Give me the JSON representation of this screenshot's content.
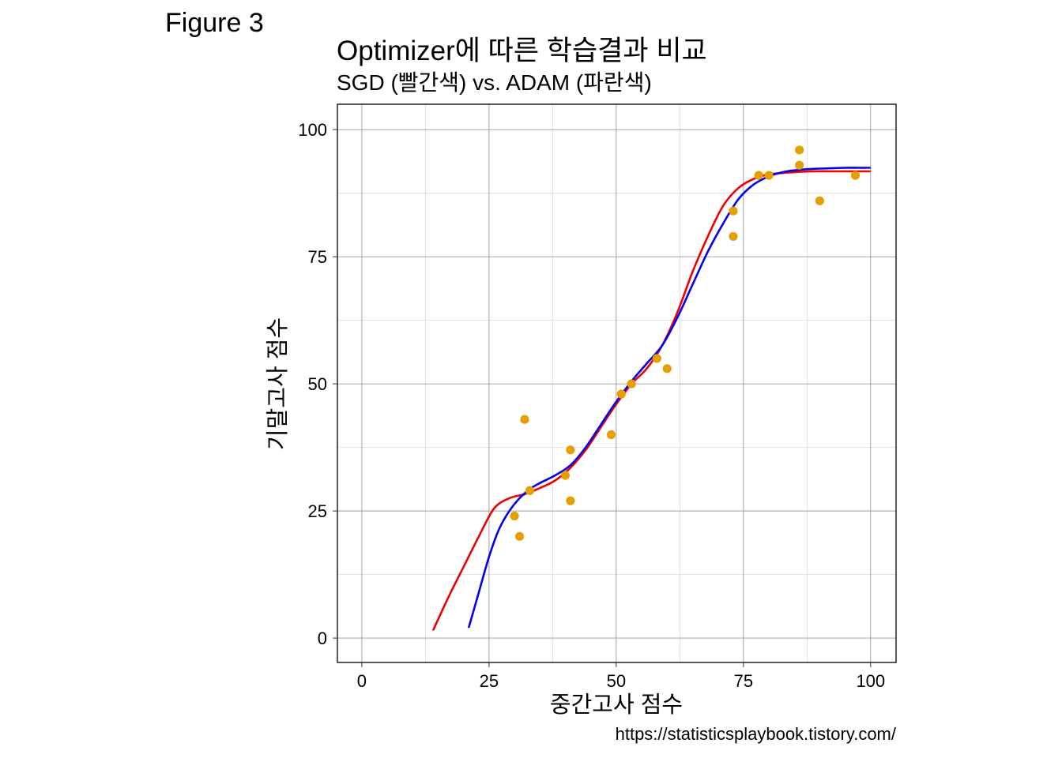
{
  "figure_label": "Figure 3",
  "caption": "https://statisticsplaybook.tistory.com/",
  "chart_data": {
    "type": "scatter",
    "title": "Optimizer에 따른 학습결과 비교",
    "subtitle": "SGD (빨간색) vs. ADAM (파란색)",
    "xlabel": "중간고사 점수",
    "ylabel": "기말고사 점수",
    "xlim": [
      -4.8,
      105.0
    ],
    "ylim": [
      -4.8,
      105.0
    ],
    "x_ticks": [
      0,
      25,
      50,
      75,
      100
    ],
    "y_ticks": [
      0,
      25,
      50,
      75,
      100
    ],
    "grid": true,
    "points": {
      "color": "#E69F00",
      "x": [
        31,
        32,
        33,
        30,
        40,
        41,
        41,
        49,
        51,
        53,
        58,
        60,
        73,
        73,
        78,
        80,
        86,
        86,
        90,
        97
      ],
      "y": [
        20,
        43,
        29,
        24,
        32,
        37,
        27,
        40,
        48,
        50,
        55,
        53,
        84,
        79,
        91,
        91,
        96,
        93,
        86,
        91
      ]
    },
    "series": [
      {
        "color": "#EE0000",
        "x": [
          14,
          17,
          20,
          23,
          26,
          29,
          32,
          35,
          38,
          41,
          44,
          47,
          50,
          53,
          56,
          59,
          62,
          65,
          68,
          71,
          74,
          77,
          80,
          83,
          86,
          89,
          92,
          95,
          98,
          100
        ],
        "y": [
          1.5,
          8,
          14,
          20,
          25.5,
          27.5,
          28.3,
          29.5,
          31,
          33.5,
          37,
          41.5,
          46,
          50,
          53,
          57.5,
          64,
          72,
          79,
          85,
          88.5,
          90.3,
          91.2,
          91.5,
          91.7,
          91.8,
          91.8,
          91.8,
          91.8,
          91.8
        ]
      },
      {
        "color": "#0000EE",
        "x": [
          21,
          23,
          25,
          27,
          29,
          31,
          33,
          35,
          38,
          41,
          44,
          47,
          50,
          53,
          56,
          59,
          62,
          65,
          68,
          71,
          74,
          77,
          80,
          83,
          86,
          89,
          92,
          95,
          98,
          100
        ],
        "y": [
          2,
          9,
          16,
          21.5,
          25,
          27.5,
          29.3,
          30.5,
          32,
          34,
          37.5,
          42,
          46.5,
          50.5,
          54,
          57.5,
          63,
          69.5,
          76,
          81.5,
          86.3,
          89.2,
          90.8,
          91.7,
          92.1,
          92.3,
          92.4,
          92.5,
          92.5,
          92.5
        ]
      }
    ]
  }
}
